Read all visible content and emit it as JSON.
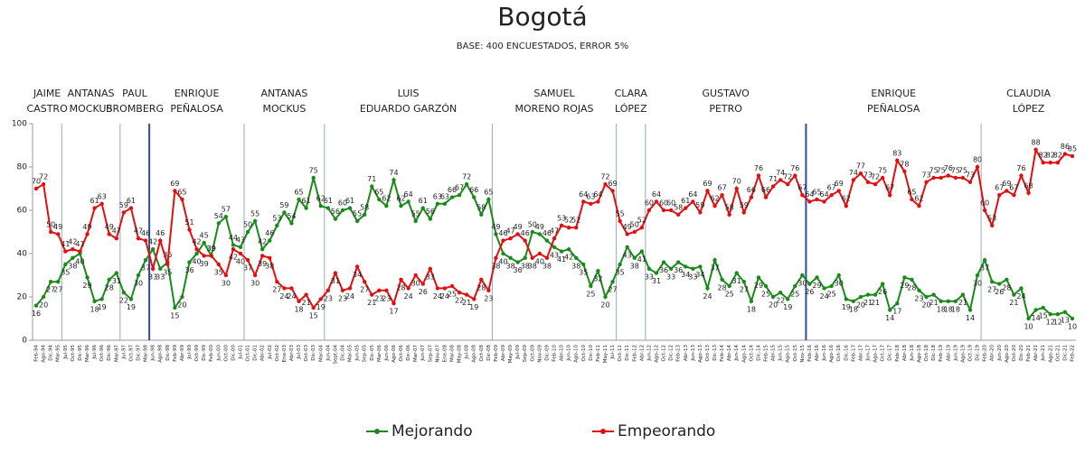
{
  "chart_data": {
    "type": "line",
    "title": "Bogotá",
    "subtitle": "BASE: 400 ENCUESTADOS, ERROR 5%",
    "categories": [
      "Feb-94",
      "Ago-94",
      "Dic-94",
      "Mar-95",
      "Jul-95",
      "Oct-95",
      "Dic-95",
      "Mar-96",
      "Jul-96",
      "Oct-96",
      "Dic-96",
      "Mar-97",
      "Jul-97",
      "Oct-97",
      "Dic-97",
      "Mar-98",
      "Jun-98",
      "Ago-98",
      "Dic-98",
      "Feb-99",
      "Abr-99",
      "Jul-99",
      "Oct-99",
      "Dic-99",
      "Feb-00",
      "Jun-00",
      "Oct-00",
      "Dic-00",
      "Jul-01",
      "Oct-01",
      "Dic-01",
      "Abr-02",
      "Jul-02",
      "Oct-02",
      "Ene-03",
      "Abr-03",
      "Jul-03",
      "Oct-03",
      "Dic-03",
      "Mar-04",
      "Jun-04",
      "Sept-04",
      "Dic-04",
      "Mar-05",
      "Jun-05",
      "Sep-05",
      "Dic-05",
      "Mar-06",
      "Jun-06",
      "Ago-06",
      "Oct-06",
      "Dic-06",
      "Mar-07",
      "Jun-07",
      "Sep-07",
      "Nov-07",
      "Ene-08",
      "Mar-08",
      "May-08",
      "Jul-08",
      "Ago-08",
      "Oct-08",
      "Dic-08",
      "Feb-09",
      "Abr-09",
      "May-09",
      "Jul-09",
      "Sep-09",
      "Oct-09",
      "Nov-09",
      "Dic-09",
      "Feb-10",
      "Abr-10",
      "Jun-10",
      "Ago-10",
      "Oct-10",
      "Dic-10",
      "Feb-11",
      "May-11",
      "Jul-11",
      "Oct-11",
      "Dic-11",
      "Feb-12",
      "Abr-12",
      "Jun-12",
      "Ago-12",
      "Oct-12",
      "Dic-12",
      "Feb-13",
      "Abr-13",
      "Jun-13",
      "Ago-13",
      "Oct-13",
      "Dic-13",
      "Feb-14",
      "Abr-14",
      "Jun-14",
      "Ago-14",
      "Oct-14",
      "Dic-14",
      "Feb-15",
      "Abr-15",
      "Jun-15",
      "Ago-15",
      "Oct-15",
      "Nov-15",
      "Feb-16",
      "Abr-16",
      "Jun-16",
      "Ago-16",
      "Oct-16",
      "Dic-16",
      "Feb-17",
      "Abr-17",
      "Jun-17",
      "Ago-17",
      "Oct-17",
      "Dic-17",
      "Feb-18",
      "Abr-18",
      "Jun-18",
      "Ago-18",
      "Oct-18",
      "Dic-18",
      "Feb-19",
      "Abr-19",
      "Jun-19",
      "Ago-19",
      "Oct-19",
      "Dic-19",
      "Feb-20",
      "Abr-20",
      "Jun-20",
      "Ago-20",
      "Oct-20",
      "Dic-20",
      "Feb-21",
      "Abr-21",
      "Jun-21",
      "Ago-21",
      "Oct-21",
      "Dic-21",
      "Feb-22"
    ],
    "series": [
      {
        "name": "Mejorando",
        "color": "#1a8a1a",
        "values": [
          16,
          20,
          27,
          27,
          35,
          38,
          40,
          29,
          18,
          19,
          28,
          31,
          22,
          19,
          30,
          37,
          42,
          33,
          36,
          15,
          20,
          36,
          40,
          45,
          39,
          54,
          57,
          44,
          43,
          50,
          55,
          42,
          46,
          53,
          59,
          54,
          65,
          61,
          75,
          62,
          61,
          56,
          60,
          61,
          55,
          58,
          71,
          65,
          62,
          74,
          62,
          64,
          55,
          61,
          56,
          63,
          63,
          66,
          67,
          72,
          66,
          58,
          65,
          49,
          40,
          38,
          36,
          38,
          50,
          49,
          46,
          43,
          41,
          42,
          38,
          35,
          25,
          32,
          20,
          27,
          35,
          43,
          38,
          41,
          33,
          31,
          36,
          33,
          36,
          34,
          33,
          34,
          24,
          37,
          28,
          25,
          31,
          27,
          18,
          29,
          25,
          20,
          22,
          19,
          25,
          30,
          26,
          29,
          24,
          25,
          30,
          19,
          18,
          20,
          21,
          21,
          26,
          14,
          17,
          29,
          28,
          23,
          20,
          21,
          18,
          18,
          18,
          21,
          14,
          30,
          37,
          27,
          26,
          28,
          21,
          24,
          10,
          14,
          15,
          12,
          12,
          13,
          10
        ]
      },
      {
        "name": "Empeorando",
        "color": "#e01010",
        "values": [
          70,
          72,
          50,
          49,
          41,
          42,
          41,
          49,
          61,
          63,
          49,
          47,
          59,
          61,
          47,
          46,
          33,
          46,
          35,
          69,
          65,
          51,
          42,
          39,
          39,
          35,
          30,
          42,
          40,
          37,
          30,
          39,
          38,
          27,
          24,
          24,
          18,
          21,
          15,
          19,
          23,
          31,
          23,
          24,
          34,
          27,
          21,
          23,
          23,
          17,
          28,
          24,
          30,
          26,
          33,
          24,
          24,
          25,
          22,
          21,
          19,
          28,
          23,
          38,
          46,
          47,
          49,
          46,
          38,
          40,
          38,
          47,
          53,
          52,
          52,
          64,
          63,
          64,
          72,
          69,
          55,
          49,
          50,
          52,
          60,
          64,
          60,
          60,
          58,
          61,
          64,
          59,
          69,
          62,
          67,
          58,
          70,
          59,
          66,
          76,
          66,
          71,
          74,
          72,
          76,
          67,
          64,
          65,
          64,
          67,
          69,
          62,
          74,
          77,
          73,
          72,
          75,
          67,
          83,
          78,
          65,
          62,
          73,
          75,
          75,
          76,
          75,
          75,
          73,
          80,
          60,
          53,
          67,
          69,
          67,
          76,
          68,
          88,
          82,
          82,
          82,
          86,
          85
        ]
      }
    ],
    "periods": [
      {
        "lines": [
          "JAIME",
          "CASTRO"
        ],
        "start": 0
      },
      {
        "lines": [
          "ANTANAS",
          "MOCKUS"
        ],
        "start": 4
      },
      {
        "lines": [
          "PAUL",
          "BROMBERG"
        ],
        "start": 12
      },
      {
        "lines": [
          "ENRIQUE",
          "PEÑALOSA"
        ],
        "start": 16
      },
      {
        "lines": [
          "ANTANAS",
          "MOCKUS"
        ],
        "start": 29
      },
      {
        "lines": [
          "LUIS",
          "EDUARDO GARZÓN"
        ],
        "start": 40
      },
      {
        "lines": [
          "SAMUEL",
          "MORENO ROJAS"
        ],
        "start": 63
      },
      {
        "lines": [
          "CLARA",
          "LÓPEZ"
        ],
        "start": 80
      },
      {
        "lines": [
          "GUSTAVO",
          "PETRO"
        ],
        "start": 84
      },
      {
        "lines": [
          "ENRIQUE",
          "PEÑALOSA"
        ],
        "start": 106
      },
      {
        "lines": [
          "CLAUDIA",
          "LÓPEZ"
        ],
        "start": 130
      }
    ],
    "ylim": [
      0,
      100
    ],
    "yticks": [
      0,
      20,
      40,
      60,
      80,
      100
    ],
    "grid": false,
    "legend": "bottom"
  }
}
